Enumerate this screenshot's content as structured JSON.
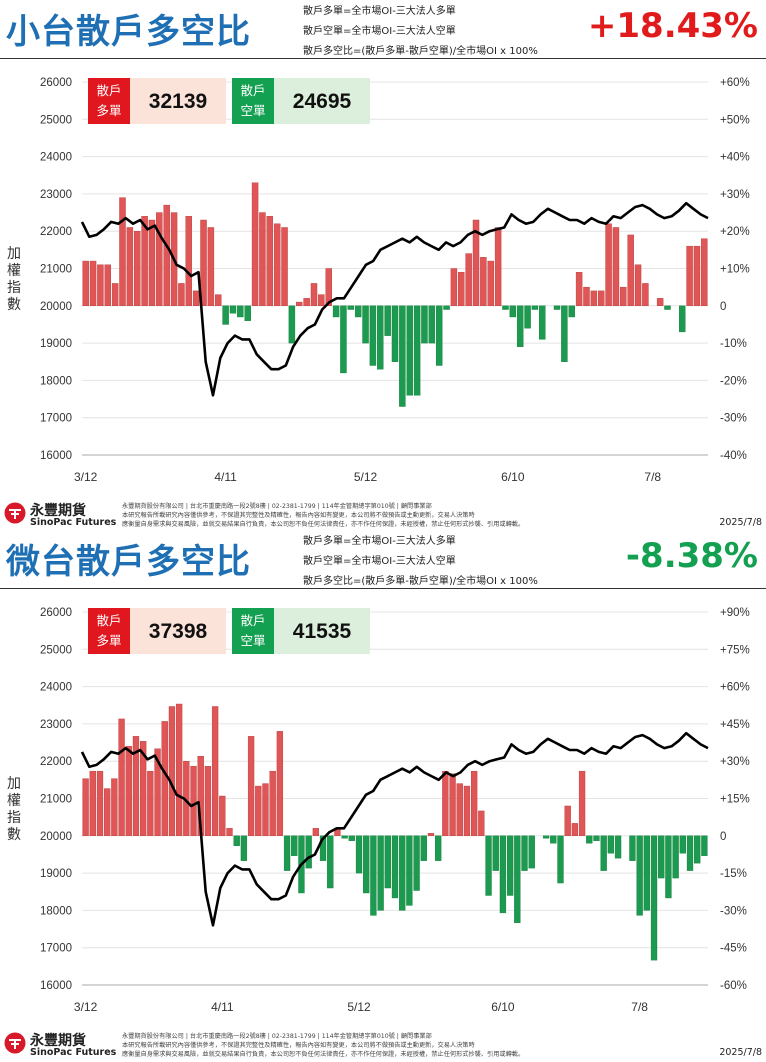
{
  "colors": {
    "title": "#1f6fb4",
    "up": "#e11b1b",
    "down": "#13a051",
    "bar_up": "#e05555",
    "bar_down": "#1c9a4f",
    "line": "#000000"
  },
  "footer": {
    "brand": "永豐期貨",
    "brand_en": "SinoPac Futures",
    "disclaimer_1": "永豐期貨股份有限公司 | 台北市重慶南路一段2號8樓 | 02-2381-1799 | 114年金管期總字第010號 | 顧問事業部",
    "disclaimer_2": "本研究報告所載研究內容僅供參考，不保證其完整性及精確性，報告內容如有變更，本公司將不做預告或主動更新，交易人決策時",
    "disclaimer_3": "應衡量自身需求與交易風險，並就交易結果自行負責，本公司恕不負任何法律責任，亦不作任何保證，未經授權，禁止任何形式抄襲、引用或轉載。",
    "date": "2025/7/8",
    "logo": "sinopac-logo-icon"
  },
  "panels": [
    {
      "title": "小台散戶多空比",
      "def_long": "散戶多單=全市場OI-三大法人多單",
      "def_short": "散戶空單=全市場OI-三大法人空單",
      "def_ratio": "散戶多空比=(散戶多單-散戶空單)/全市場OI x 100%",
      "ratio": "+18.43%",
      "ratio_color": "#e11b1b",
      "long_label_1": "散戶",
      "long_label_2": "多單",
      "long_value": "32139",
      "short_label_1": "散戶",
      "short_label_2": "空單",
      "short_value": "24695",
      "chart_data": {
        "type": "bar+line",
        "ylabel": "加權指數",
        "left_axis": {
          "min": 16000,
          "max": 26000,
          "ticks": [
            "16000",
            "17000",
            "18000",
            "19000",
            "20000",
            "21000",
            "22000",
            "23000",
            "24000",
            "25000",
            "26000"
          ]
        },
        "right_axis": {
          "min": -40,
          "max": 60,
          "ticks": [
            "-40%",
            "-30%",
            "-20%",
            "-10%",
            "0",
            "+10%",
            "+20%",
            "+30%",
            "+40%",
            "+50%",
            "+60%"
          ]
        },
        "x_ticks": [
          {
            "label": "3/12",
            "i": 0
          },
          {
            "label": "4/11",
            "i": 19
          },
          {
            "label": "5/12",
            "i": 38
          },
          {
            "label": "6/10",
            "i": 58
          },
          {
            "label": "7/8",
            "i": 77
          }
        ],
        "ratio_pct": [
          12,
          12,
          11,
          11,
          6,
          29,
          21,
          20,
          24,
          23,
          25,
          27,
          25,
          6,
          24,
          4,
          23,
          21,
          3,
          -5,
          -2,
          -3,
          -4,
          33,
          25,
          24,
          22,
          21,
          -10,
          1,
          2,
          6,
          3,
          10,
          -3,
          -18,
          -1,
          -3,
          -10,
          -16,
          -17,
          -8,
          -15,
          -27,
          -24,
          -24,
          -10,
          -10,
          -16,
          -1,
          10,
          9,
          14,
          23,
          13,
          12,
          21,
          -1,
          -3,
          -11,
          -6,
          -1,
          -9,
          0,
          -1,
          -15,
          -3,
          9,
          5,
          4,
          4,
          22,
          21,
          5,
          19,
          11,
          6,
          0,
          2,
          -1,
          0,
          -7,
          16,
          16,
          18
        ],
        "index": [
          22250,
          21850,
          21900,
          22050,
          22250,
          22200,
          22350,
          22200,
          22300,
          22050,
          22150,
          21800,
          21500,
          21100,
          21000,
          20800,
          20900,
          18500,
          17600,
          18600,
          19000,
          19200,
          19100,
          19100,
          18700,
          18500,
          18300,
          18300,
          18400,
          18900,
          19200,
          19400,
          19500,
          19900,
          20100,
          20200,
          20200,
          20500,
          20800,
          21100,
          21200,
          21500,
          21600,
          21700,
          21800,
          21700,
          21850,
          21700,
          21600,
          21500,
          21700,
          21600,
          21700,
          21900,
          22000,
          21900,
          22000,
          22050,
          22100,
          22450,
          22300,
          22200,
          22250,
          22450,
          22600,
          22500,
          22400,
          22300,
          22300,
          22200,
          22350,
          22250,
          22200,
          22400,
          22350,
          22500,
          22650,
          22700,
          22600,
          22450,
          22350,
          22400,
          22550,
          22750,
          22600,
          22450,
          22350
        ]
      }
    },
    {
      "title": "微台散戶多空比",
      "def_long": "散戶多單=全市場OI-三大法人多單",
      "def_short": "散戶空單=全市場OI-三大法人空單",
      "def_ratio": "散戶多空比=(散戶多單-散戶空單)/全市場OI x 100%",
      "ratio": "-8.38%",
      "ratio_color": "#13a051",
      "long_label_1": "散戶",
      "long_label_2": "多單",
      "long_value": "37398",
      "short_label_1": "散戶",
      "short_label_2": "空單",
      "short_value": "41535",
      "chart_data": {
        "type": "bar+line",
        "ylabel": "加權指數",
        "left_axis": {
          "min": 16000,
          "max": 26000,
          "ticks": [
            "16000",
            "17000",
            "18000",
            "19000",
            "20000",
            "21000",
            "22000",
            "23000",
            "24000",
            "25000",
            "26000"
          ]
        },
        "right_axis": {
          "min": -60,
          "max": 90,
          "ticks": [
            "-60%",
            "-45%",
            "-30%",
            "-15%",
            "0",
            "+15%",
            "+30%",
            "+45%",
            "+60%",
            "+75%",
            "+90%"
          ]
        },
        "x_ticks": [
          {
            "label": "3/12",
            "i": 0
          },
          {
            "label": "4/11",
            "i": 19
          },
          {
            "label": "5/12",
            "i": 38
          },
          {
            "label": "6/10",
            "i": 58
          },
          {
            "label": "7/8",
            "i": 77
          }
        ],
        "ratio_pct": [
          23,
          26,
          26,
          19,
          23,
          47,
          36,
          40,
          38,
          26,
          35,
          46,
          52,
          53,
          30,
          28,
          32,
          28,
          52,
          16,
          3,
          -4,
          -10,
          40,
          20,
          21,
          26,
          42,
          -14,
          -8,
          -23,
          -13,
          3,
          -10,
          -21,
          3,
          -1,
          -2,
          -15,
          -23,
          -32,
          -30,
          -21,
          -25,
          -30,
          -28,
          -22,
          -10,
          1,
          -10,
          26,
          25,
          21,
          20,
          26,
          10,
          -24,
          -14,
          -31,
          -24,
          -35,
          -14,
          -13,
          0,
          -1,
          -3,
          -19,
          12,
          5,
          26,
          -3,
          -2,
          -14,
          -7,
          -9,
          0,
          -10,
          -32,
          -30,
          -50,
          -17,
          -25,
          -17,
          -7,
          -14,
          -11,
          -8
        ],
        "index": [
          22250,
          21850,
          21900,
          22050,
          22250,
          22200,
          22350,
          22200,
          22300,
          22050,
          22150,
          21800,
          21500,
          21100,
          21000,
          20800,
          20900,
          18500,
          17600,
          18600,
          19000,
          19200,
          19100,
          19100,
          18700,
          18500,
          18300,
          18300,
          18400,
          18900,
          19200,
          19400,
          19500,
          19900,
          20100,
          20200,
          20200,
          20500,
          20800,
          21100,
          21200,
          21500,
          21600,
          21700,
          21800,
          21700,
          21850,
          21700,
          21600,
          21500,
          21700,
          21600,
          21700,
          21900,
          22000,
          21900,
          22000,
          22050,
          22100,
          22450,
          22300,
          22200,
          22250,
          22450,
          22600,
          22500,
          22400,
          22300,
          22300,
          22200,
          22350,
          22250,
          22200,
          22400,
          22350,
          22500,
          22650,
          22700,
          22600,
          22450,
          22350,
          22400,
          22550,
          22750,
          22600,
          22450,
          22350
        ]
      }
    }
  ]
}
